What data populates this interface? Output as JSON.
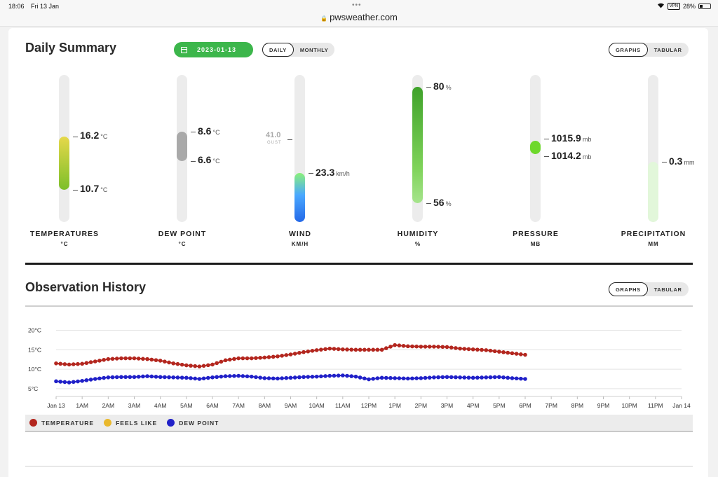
{
  "status_bar": {
    "time": "18:06",
    "date": "Fri 13 Jan",
    "url": "pwsweather.com",
    "vpn": "VPN",
    "battery": "28%"
  },
  "daily": {
    "title": "Daily Summary",
    "date": "2023-01-13",
    "period_toggle": [
      "DAILY",
      "MONTHLY"
    ],
    "view_toggle": [
      "GRAPHS",
      "TABULAR"
    ]
  },
  "gauges": {
    "temperature": {
      "label": "TEMPERATURES",
      "unit_label": "°C",
      "high": "16.2",
      "low": "10.7",
      "unit": "°C"
    },
    "dewpoint": {
      "label": "DEW POINT",
      "unit_label": "°C",
      "high": "8.6",
      "low": "6.6",
      "unit": "°C"
    },
    "wind": {
      "label": "WIND",
      "unit_label": "KM/H",
      "gust": "41.0",
      "gust_label": "GUST",
      "value": "23.3",
      "unit": "km/h"
    },
    "humidity": {
      "label": "HUMIDITY",
      "unit_label": "%",
      "high": "80",
      "low": "56",
      "unit": "%"
    },
    "pressure": {
      "label": "PRESSURE",
      "unit_label": "MB",
      "high": "1015.9",
      "low": "1014.2",
      "unit": "mb"
    },
    "precipitation": {
      "label": "PRECIPITATION",
      "unit_label": "MM",
      "value": "0.3",
      "unit": "mm"
    }
  },
  "observation": {
    "title": "Observation History",
    "view_toggle": [
      "GRAPHS",
      "TABULAR"
    ],
    "legend": [
      {
        "name": "TEMPERATURE",
        "color": "#b3261e"
      },
      {
        "name": "FEELS LIKE",
        "color": "#e9b82c"
      },
      {
        "name": "DEW POINT",
        "color": "#2020c8"
      }
    ]
  },
  "colors": {
    "accent": "#3cb64b",
    "temp": "#b3261e",
    "dew": "#2020c8"
  },
  "chart_data": {
    "type": "line",
    "x_ticks": [
      "Jan 13",
      "1AM",
      "2AM",
      "3AM",
      "4AM",
      "5AM",
      "6AM",
      "7AM",
      "8AM",
      "9AM",
      "10AM",
      "11AM",
      "12PM",
      "1PM",
      "2PM",
      "3PM",
      "4PM",
      "5PM",
      "6PM",
      "7PM",
      "8PM",
      "9PM",
      "10PM",
      "11PM",
      "Jan 14"
    ],
    "y_ticks": [
      "20°C",
      "15°C",
      "10°C",
      "5°C"
    ],
    "ylim": [
      3,
      21
    ],
    "x_hours": [
      0,
      24
    ],
    "series": [
      {
        "name": "TEMPERATURE",
        "color": "#b3261e",
        "x": [
          0,
          0.5,
          1,
          1.5,
          2,
          2.5,
          3,
          3.5,
          4,
          4.5,
          5,
          5.5,
          6,
          6.5,
          7,
          7.5,
          8,
          8.5,
          9,
          9.5,
          10,
          10.5,
          11,
          11.5,
          12,
          12.5,
          13,
          13.5,
          14,
          14.5,
          15,
          15.5,
          16,
          16.5,
          17,
          17.5,
          18
        ],
        "values": [
          11.5,
          11.2,
          11.4,
          12,
          12.6,
          12.8,
          12.8,
          12.6,
          12.2,
          11.5,
          11,
          10.7,
          11.2,
          12.3,
          12.8,
          12.8,
          13,
          13.3,
          13.8,
          14.4,
          14.9,
          15.3,
          15.1,
          15,
          15,
          15,
          16.2,
          15.9,
          15.8,
          15.8,
          15.7,
          15.3,
          15.1,
          14.9,
          14.5,
          14.1,
          13.7
        ]
      },
      {
        "name": "DEW POINT",
        "color": "#2020c8",
        "x": [
          0,
          0.5,
          1,
          1.5,
          2,
          2.5,
          3,
          3.5,
          4,
          4.5,
          5,
          5.5,
          6,
          6.5,
          7,
          7.5,
          8,
          8.5,
          9,
          9.5,
          10,
          10.5,
          11,
          11.5,
          12,
          12.5,
          13,
          13.5,
          14,
          14.5,
          15,
          15.5,
          16,
          16.5,
          17,
          17.5,
          18
        ],
        "values": [
          6.9,
          6.6,
          7,
          7.5,
          7.9,
          8,
          8,
          8.2,
          8,
          7.9,
          7.8,
          7.5,
          7.9,
          8.2,
          8.3,
          8.1,
          7.7,
          7.6,
          7.8,
          8,
          8.1,
          8.3,
          8.4,
          8.1,
          7.4,
          7.8,
          7.7,
          7.6,
          7.7,
          7.9,
          8,
          7.9,
          7.8,
          7.9,
          8,
          7.7,
          7.5
        ]
      }
    ]
  }
}
